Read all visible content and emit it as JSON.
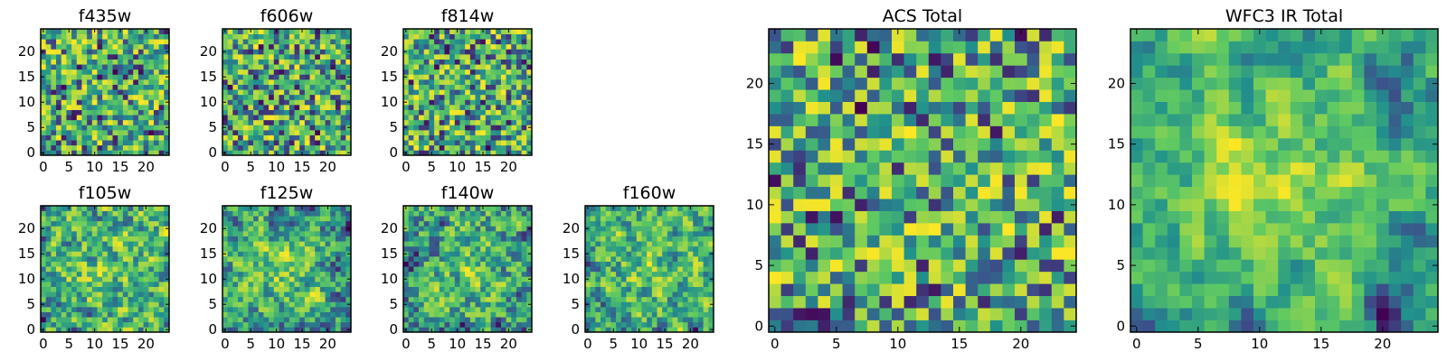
{
  "colormap": [
    "#440154",
    "#3b528b",
    "#21918c",
    "#5ec962",
    "#fde725"
  ],
  "chart_data": [
    {
      "type": "heatmap",
      "title": "f435w",
      "grid_size": 25,
      "seed": 11,
      "smooth": 0,
      "center_boost": 0.0,
      "xticks": [
        "0",
        "5",
        "10",
        "15",
        "20"
      ],
      "yticks": [
        "0",
        "5",
        "10",
        "15",
        "20"
      ],
      "xlim": [
        -0.5,
        24.5
      ],
      "ylim": [
        -0.5,
        24.5
      ]
    },
    {
      "type": "heatmap",
      "title": "f606w",
      "grid_size": 25,
      "seed": 23,
      "smooth": 0,
      "center_boost": 0.0,
      "xticks": [
        "0",
        "5",
        "10",
        "15",
        "20"
      ],
      "yticks": [
        "0",
        "5",
        "10",
        "15",
        "20"
      ],
      "xlim": [
        -0.5,
        24.5
      ],
      "ylim": [
        -0.5,
        24.5
      ]
    },
    {
      "type": "heatmap",
      "title": "f814w",
      "grid_size": 25,
      "seed": 37,
      "smooth": 0,
      "center_boost": 0.0,
      "xticks": [
        "0",
        "5",
        "10",
        "15",
        "20"
      ],
      "yticks": [
        "0",
        "5",
        "10",
        "15",
        "20"
      ],
      "xlim": [
        -0.5,
        24.5
      ],
      "ylim": [
        -0.5,
        24.5
      ]
    },
    {
      "type": "heatmap",
      "title": "f105w",
      "grid_size": 25,
      "seed": 41,
      "smooth": 1,
      "center_boost": 0.15,
      "xticks": [
        "0",
        "5",
        "10",
        "15",
        "20"
      ],
      "yticks": [
        "0",
        "5",
        "10",
        "15",
        "20"
      ],
      "xlim": [
        -0.5,
        24.5
      ],
      "ylim": [
        -0.5,
        24.5
      ]
    },
    {
      "type": "heatmap",
      "title": "f125w",
      "grid_size": 25,
      "seed": 53,
      "smooth": 1,
      "center_boost": 0.2,
      "xticks": [
        "0",
        "5",
        "10",
        "15",
        "20"
      ],
      "yticks": [
        "0",
        "5",
        "10",
        "15",
        "20"
      ],
      "xlim": [
        -0.5,
        24.5
      ],
      "ylim": [
        -0.5,
        24.5
      ]
    },
    {
      "type": "heatmap",
      "title": "f140w",
      "grid_size": 25,
      "seed": 67,
      "smooth": 1,
      "center_boost": 0.15,
      "xticks": [
        "0",
        "5",
        "10",
        "15",
        "20"
      ],
      "yticks": [
        "0",
        "5",
        "10",
        "15",
        "20"
      ],
      "xlim": [
        -0.5,
        24.5
      ],
      "ylim": [
        -0.5,
        24.5
      ]
    },
    {
      "type": "heatmap",
      "title": "f160w",
      "grid_size": 25,
      "seed": 79,
      "smooth": 1,
      "center_boost": 0.15,
      "xticks": [
        "0",
        "5",
        "10",
        "15",
        "20"
      ],
      "yticks": [
        "0",
        "5",
        "10",
        "15",
        "20"
      ],
      "xlim": [
        -0.5,
        24.5
      ],
      "ylim": [
        -0.5,
        24.5
      ]
    },
    {
      "type": "heatmap",
      "title": "ACS Total",
      "grid_size": 25,
      "seed": 97,
      "smooth": 0,
      "center_boost": 0.0,
      "xticks": [
        "0",
        "5",
        "10",
        "15",
        "20"
      ],
      "yticks": [
        "0",
        "5",
        "10",
        "15",
        "20"
      ],
      "xlim": [
        -0.5,
        24.5
      ],
      "ylim": [
        -0.5,
        24.5
      ]
    },
    {
      "type": "heatmap",
      "title": "WFC3 IR Total",
      "grid_size": 25,
      "seed": 131,
      "smooth": 2,
      "center_boost": 0.3,
      "xticks": [
        "0",
        "5",
        "10",
        "15",
        "20"
      ],
      "yticks": [
        "0",
        "5",
        "10",
        "15",
        "20"
      ],
      "xlim": [
        -0.5,
        24.5
      ],
      "ylim": [
        -0.5,
        24.5
      ]
    }
  ]
}
